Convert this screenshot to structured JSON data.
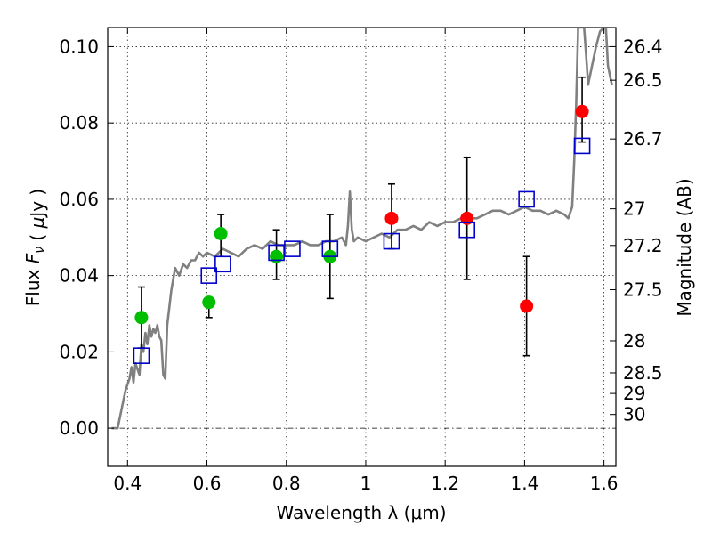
{
  "chart_data": {
    "type": "scatter",
    "title": "",
    "xlabel": "Wavelength  λ (μm)",
    "ylabel": "Flux  F_ν  ( μJy )",
    "ylabel_right": "Magnitude (AB)",
    "xlim": [
      0.35,
      1.63
    ],
    "ylim": [
      -0.01,
      0.105
    ],
    "grid": true,
    "x_ticks": [
      0.4,
      0.6,
      0.8,
      1.0,
      1.2,
      1.4,
      1.6
    ],
    "x_tick_labels": [
      "0.4",
      "0.6",
      "0.8",
      "1",
      "1.2",
      "1.4",
      "1.6"
    ],
    "y_ticks": [
      0.0,
      0.02,
      0.04,
      0.06,
      0.08,
      0.1
    ],
    "y_tick_labels": [
      "0.00",
      "0.02",
      "0.04",
      "0.06",
      "0.08",
      "0.10"
    ],
    "right_ticks": [
      {
        "flux": 0.1,
        "label": "26.4"
      },
      {
        "flux": 0.0912,
        "label": "26.5"
      },
      {
        "flux": 0.0758,
        "label": "26.7"
      },
      {
        "flux": 0.0575,
        "label": "27"
      },
      {
        "flux": 0.0479,
        "label": "27.2"
      },
      {
        "flux": 0.0363,
        "label": "27.5"
      },
      {
        "flux": 0.0229,
        "label": "28"
      },
      {
        "flux": 0.0145,
        "label": "28.5"
      },
      {
        "flux": 0.0091,
        "label": "29"
      },
      {
        "flux": 0.0036,
        "label": "30"
      }
    ],
    "series": [
      {
        "kind": "spectrum",
        "color": "#808080",
        "points": [
          [
            0.36,
            0.0
          ],
          [
            0.375,
            0.0
          ],
          [
            0.385,
            0.005
          ],
          [
            0.395,
            0.01
          ],
          [
            0.405,
            0.013
          ],
          [
            0.41,
            0.016
          ],
          [
            0.415,
            0.012
          ],
          [
            0.42,
            0.017
          ],
          [
            0.43,
            0.014
          ],
          [
            0.435,
            0.022
          ],
          [
            0.44,
            0.02
          ],
          [
            0.445,
            0.025
          ],
          [
            0.45,
            0.022
          ],
          [
            0.455,
            0.027
          ],
          [
            0.46,
            0.024
          ],
          [
            0.465,
            0.026
          ],
          [
            0.47,
            0.025
          ],
          [
            0.475,
            0.027
          ],
          [
            0.48,
            0.024
          ],
          [
            0.485,
            0.023
          ],
          [
            0.49,
            0.014
          ],
          [
            0.495,
            0.013
          ],
          [
            0.5,
            0.027
          ],
          [
            0.51,
            0.036
          ],
          [
            0.52,
            0.042
          ],
          [
            0.53,
            0.04
          ],
          [
            0.54,
            0.043
          ],
          [
            0.55,
            0.042
          ],
          [
            0.56,
            0.044
          ],
          [
            0.57,
            0.044
          ],
          [
            0.58,
            0.046
          ],
          [
            0.59,
            0.045
          ],
          [
            0.6,
            0.046
          ],
          [
            0.62,
            0.045
          ],
          [
            0.64,
            0.047
          ],
          [
            0.66,
            0.046
          ],
          [
            0.68,
            0.045
          ],
          [
            0.7,
            0.047
          ],
          [
            0.72,
            0.048
          ],
          [
            0.74,
            0.047
          ],
          [
            0.76,
            0.049
          ],
          [
            0.78,
            0.048
          ],
          [
            0.8,
            0.048
          ],
          [
            0.82,
            0.048
          ],
          [
            0.84,
            0.049
          ],
          [
            0.86,
            0.048
          ],
          [
            0.88,
            0.048
          ],
          [
            0.9,
            0.049
          ],
          [
            0.92,
            0.049
          ],
          [
            0.94,
            0.05
          ],
          [
            0.95,
            0.048
          ],
          [
            0.955,
            0.053
          ],
          [
            0.96,
            0.062
          ],
          [
            0.965,
            0.052
          ],
          [
            0.97,
            0.049
          ],
          [
            0.98,
            0.05
          ],
          [
            1.0,
            0.049
          ],
          [
            1.02,
            0.05
          ],
          [
            1.04,
            0.051
          ],
          [
            1.06,
            0.05
          ],
          [
            1.08,
            0.052
          ],
          [
            1.1,
            0.052
          ],
          [
            1.12,
            0.053
          ],
          [
            1.14,
            0.052
          ],
          [
            1.16,
            0.054
          ],
          [
            1.18,
            0.053
          ],
          [
            1.2,
            0.054
          ],
          [
            1.22,
            0.054
          ],
          [
            1.24,
            0.055
          ],
          [
            1.26,
            0.055
          ],
          [
            1.28,
            0.055
          ],
          [
            1.3,
            0.056
          ],
          [
            1.32,
            0.057
          ],
          [
            1.34,
            0.057
          ],
          [
            1.36,
            0.056
          ],
          [
            1.38,
            0.057
          ],
          [
            1.4,
            0.058
          ],
          [
            1.42,
            0.057
          ],
          [
            1.44,
            0.057
          ],
          [
            1.46,
            0.056
          ],
          [
            1.48,
            0.057
          ],
          [
            1.5,
            0.056
          ],
          [
            1.51,
            0.055
          ],
          [
            1.52,
            0.058
          ],
          [
            1.525,
            0.07
          ],
          [
            1.53,
            0.085
          ],
          [
            1.535,
            0.105
          ],
          [
            1.55,
            0.105
          ],
          [
            1.555,
            0.098
          ],
          [
            1.56,
            0.09
          ],
          [
            1.57,
            0.095
          ],
          [
            1.58,
            0.1
          ],
          [
            1.59,
            0.104
          ],
          [
            1.6,
            0.105
          ],
          [
            1.605,
            0.105
          ],
          [
            1.61,
            0.095
          ],
          [
            1.62,
            0.09
          ]
        ]
      },
      {
        "kind": "observed",
        "marker": "circle",
        "color": "#00bf00",
        "points": [
          {
            "x": 0.435,
            "y": 0.029,
            "err": [
              0.021,
              0.037
            ]
          },
          {
            "x": 0.605,
            "y": 0.033,
            "err": [
              0.029,
              0.034
            ]
          },
          {
            "x": 0.635,
            "y": 0.051,
            "err": [
              0.045,
              0.056
            ]
          },
          {
            "x": 0.775,
            "y": 0.045,
            "err": [
              0.039,
              0.052
            ]
          },
          {
            "x": 0.91,
            "y": 0.045,
            "err": [
              0.034,
              0.056
            ]
          }
        ]
      },
      {
        "kind": "observed",
        "marker": "circle",
        "color": "#ff0000",
        "points": [
          {
            "x": 1.065,
            "y": 0.055,
            "err": [
              0.047,
              0.064
            ]
          },
          {
            "x": 1.255,
            "y": 0.055,
            "err": [
              0.039,
              0.071
            ]
          },
          {
            "x": 1.405,
            "y": 0.032,
            "err": [
              0.019,
              0.045
            ]
          },
          {
            "x": 1.545,
            "y": 0.083,
            "err": [
              0.075,
              0.092
            ]
          }
        ]
      },
      {
        "kind": "model",
        "marker": "square",
        "color": "#0000cc",
        "points": [
          {
            "x": 0.435,
            "y": 0.019
          },
          {
            "x": 0.605,
            "y": 0.04
          },
          {
            "x": 0.64,
            "y": 0.043
          },
          {
            "x": 0.775,
            "y": 0.046
          },
          {
            "x": 0.815,
            "y": 0.047
          },
          {
            "x": 0.91,
            "y": 0.047
          },
          {
            "x": 1.065,
            "y": 0.049
          },
          {
            "x": 1.255,
            "y": 0.052
          },
          {
            "x": 1.405,
            "y": 0.06
          },
          {
            "x": 1.545,
            "y": 0.074
          }
        ]
      }
    ]
  }
}
